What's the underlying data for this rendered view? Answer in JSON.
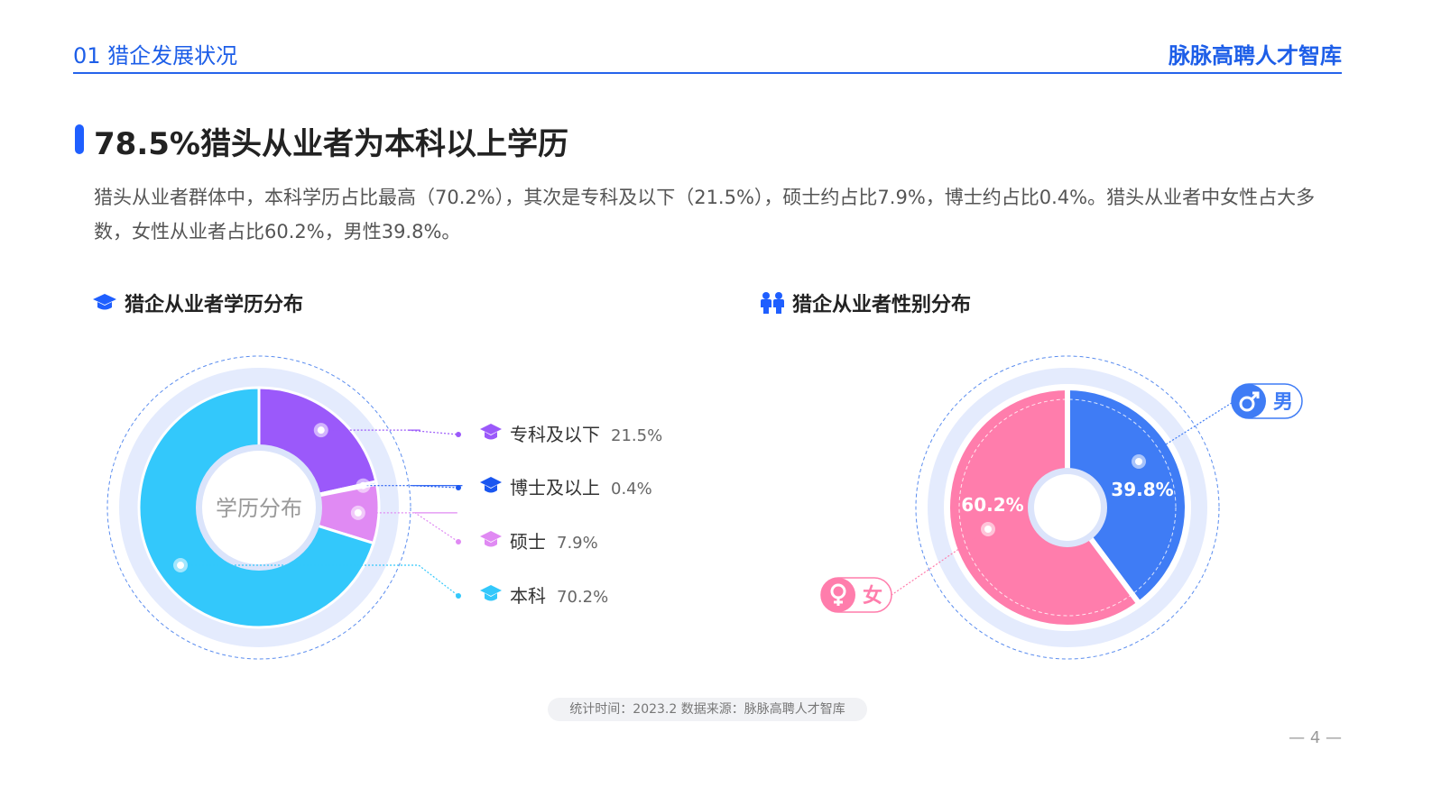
{
  "header": {
    "section": "01 猎企发展状况",
    "brand": "脉脉高聘人才智库"
  },
  "title": "78.5%猎头从业者为本科以上学历",
  "description": "猎头从业者群体中，本科学历占比最高（70.2%），其次是专科及以下（21.5%），硕士约占比7.9%，博士约占比0.4%。猎头从业者中女性占大多数，女性从业者占比60.2%，男性39.8%。",
  "colors": {
    "accent": "#1f5fff",
    "undergrad": "#33c8fb",
    "junior": "#9b59fa",
    "doctor": "#1a56f0",
    "master": "#e08af3",
    "male": "#3f7cf5",
    "female": "#ff7dac"
  },
  "chart_data": [
    {
      "type": "pie",
      "title": "猎企从业者学历分布",
      "center_label": "学历分布",
      "icon": "graduation-cap-icon",
      "slices": [
        {
          "label": "专科及以下",
          "value": 21.5,
          "display": "21.5%",
          "color": "#9b59fa",
          "icon": "graduation-cap-icon"
        },
        {
          "label": "博士及以上",
          "value": 0.4,
          "display": "0.4%",
          "color": "#1a56f0",
          "icon": "graduation-cap-icon"
        },
        {
          "label": "硕士",
          "value": 7.9,
          "display": "7.9%",
          "color": "#e08af3",
          "icon": "graduation-cap-icon"
        },
        {
          "label": "本科",
          "value": 70.2,
          "display": "70.2%",
          "color": "#33c8fb",
          "icon": "graduation-cap-icon"
        }
      ]
    },
    {
      "type": "pie",
      "title": "猎企从业者性别分布",
      "icon": "people-icon",
      "slices": [
        {
          "label": "男",
          "value": 39.8,
          "display": "39.8%",
          "color": "#3f7cf5",
          "icon": "male-symbol-icon"
        },
        {
          "label": "女",
          "value": 60.2,
          "display": "60.2%",
          "color": "#ff7dac",
          "icon": "female-symbol-icon"
        }
      ]
    }
  ],
  "footer": {
    "source": "统计时间：2023.2  数据来源：脉脉高聘人才智库",
    "page": "— 4 —"
  }
}
